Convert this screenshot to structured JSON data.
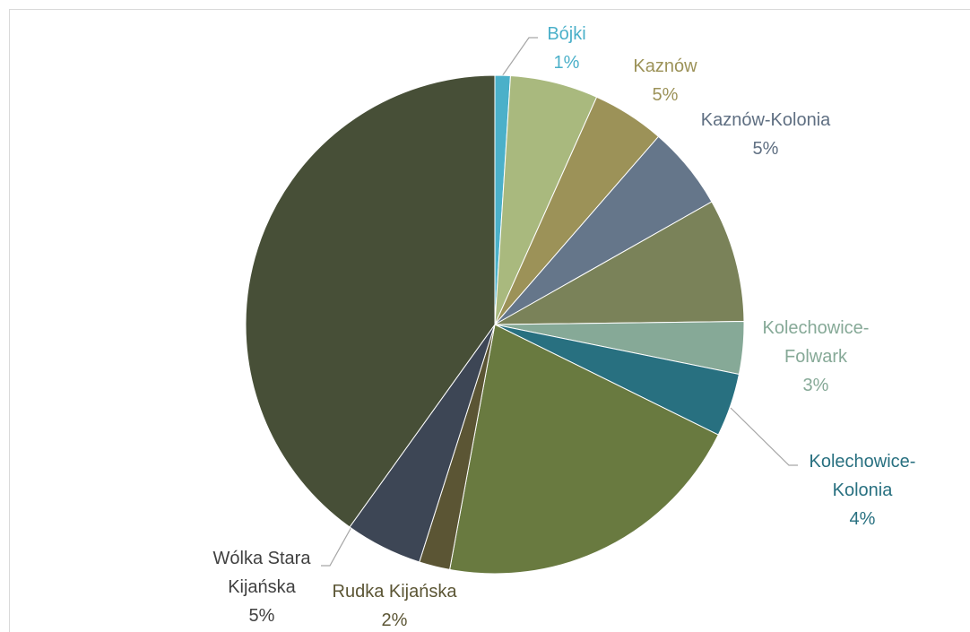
{
  "chart_data": {
    "type": "pie",
    "categories": [
      "Bójki",
      null,
      "Kaznów",
      "Kaznów-Kolonia",
      null,
      "Kolechowice-Folwark",
      "Kolechowice-Kolonia",
      null,
      "Rudka Kijańska",
      "Wólka Stara Kijańska",
      null
    ],
    "values": [
      1,
      5.7,
      4.7,
      5.4,
      8,
      3.4,
      4.1,
      20.6,
      2,
      5,
      40.1
    ],
    "value_labels": [
      "1%",
      null,
      "5%",
      "5%",
      null,
      "3%",
      "4%",
      null,
      "2%",
      "5%",
      null
    ],
    "colors": [
      "#4bb0c9",
      "#a9b97e",
      "#9c9258",
      "#65768a",
      "#7a8259",
      "#86a997",
      "#287080",
      "#697a40",
      "#5b5534",
      "#3d4655",
      "#474f37"
    ]
  }
}
